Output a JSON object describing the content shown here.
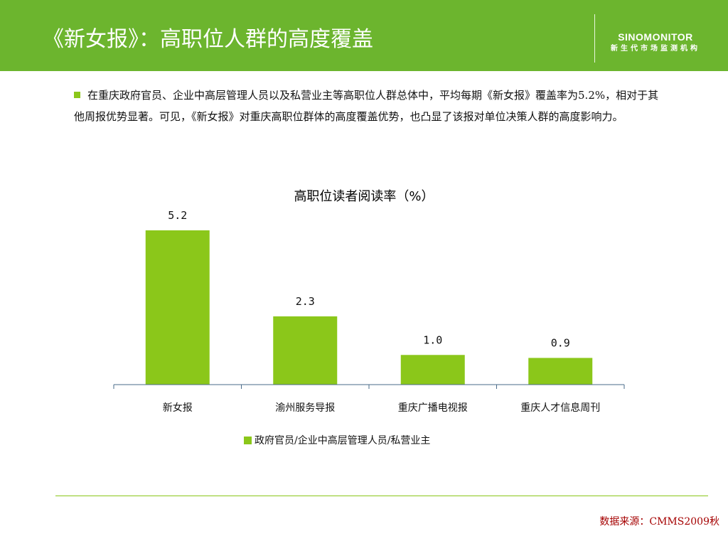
{
  "header": {
    "title": "《新女报》：高职位人群的高度覆盖",
    "logo_en": "SINOMONITOR",
    "logo_cn": "新生代市场监测机构"
  },
  "intro": {
    "text": "在重庆政府官员、企业中高层管理人员以及私营业主等高职位人群总体中，平均每期《新女报》覆盖率为5.2%，相对于其他周报优势显著。可见，《新女报》对重庆高职位群体的高度覆盖优势，也凸显了该报对单位决策人群的高度影响力。"
  },
  "chart_data": {
    "type": "bar",
    "title": "高职位读者阅读率（%）",
    "categories": [
      "新女报",
      "渝州服务导报",
      "重庆广播电视报",
      "重庆人才信息周刊"
    ],
    "series": [
      {
        "name": "政府官员/企业中高层管理人员/私营业主",
        "values": [
          5.2,
          2.3,
          1.0,
          0.9
        ]
      }
    ],
    "data_labels": [
      "5.2",
      "2.3",
      "1.0",
      "0.9"
    ],
    "ylim": [
      0,
      5.2
    ],
    "legend_position": "bottom",
    "grid": false,
    "bar_color": "#8bc71a"
  },
  "footer": {
    "source": "数据来源：CMMS2009秋"
  },
  "colors": {
    "header_bg": "#6cb52e",
    "accent": "#8bc71a",
    "source_text": "#a50000"
  }
}
